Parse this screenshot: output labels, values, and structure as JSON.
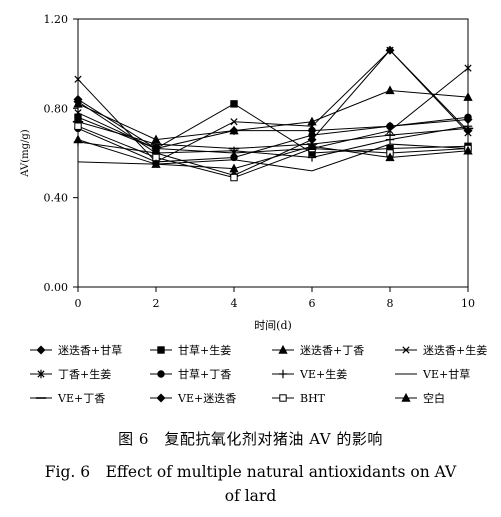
{
  "chart_data": {
    "type": "line",
    "title": "",
    "xlabel": "时间(d)",
    "ylabel": "AV(mg/g)",
    "x": [
      0,
      2,
      4,
      6,
      8,
      10
    ],
    "x_ticks": [
      "0",
      "2",
      "4",
      "6",
      "8",
      "10"
    ],
    "y_ticks": [
      "0.00",
      "0.40",
      "0.80",
      "1.20"
    ],
    "xlim": [
      0,
      10
    ],
    "ylim": [
      0,
      1.2
    ],
    "grid": false,
    "legend_position": "bottom",
    "series": [
      {
        "name": "迷迭香+甘草",
        "marker": "diamond",
        "values": [
          0.84,
          0.62,
          0.7,
          0.7,
          0.72,
          0.75
        ]
      },
      {
        "name": "甘草+生姜",
        "marker": "square",
        "values": [
          0.76,
          0.62,
          0.82,
          0.6,
          0.62,
          0.63
        ]
      },
      {
        "name": "迷迭香+丁香",
        "marker": "triangle",
        "values": [
          0.82,
          0.66,
          0.7,
          0.74,
          0.88,
          0.85
        ]
      },
      {
        "name": "迷迭香+生姜",
        "marker": "cross",
        "values": [
          0.93,
          0.56,
          0.74,
          0.72,
          1.06,
          0.69
        ]
      },
      {
        "name": "丁香+生姜",
        "marker": "star",
        "values": [
          0.78,
          0.62,
          0.6,
          0.62,
          0.7,
          0.98
        ]
      },
      {
        "name": "甘草+丁香",
        "marker": "circle",
        "values": [
          0.71,
          0.56,
          0.58,
          0.68,
          0.72,
          0.76
        ]
      },
      {
        "name": "VE+生姜",
        "marker": "plus",
        "values": [
          0.65,
          0.6,
          0.61,
          0.58,
          0.66,
          0.72
        ]
      },
      {
        "name": "VE+甘草",
        "marker": "none",
        "values": [
          0.56,
          0.55,
          0.57,
          0.52,
          0.64,
          0.62
        ]
      },
      {
        "name": "VE+丁香",
        "marker": "dash",
        "values": [
          0.74,
          0.64,
          0.62,
          0.64,
          0.68,
          0.71
        ]
      },
      {
        "name": "VE+迷迭香",
        "marker": "diamond",
        "values": [
          0.83,
          0.6,
          0.5,
          0.66,
          1.06,
          0.7
        ]
      },
      {
        "name": "BHT",
        "marker": "square-open",
        "values": [
          0.72,
          0.58,
          0.49,
          0.62,
          0.6,
          0.62
        ]
      },
      {
        "name": "空白",
        "marker": "triangle",
        "values": [
          0.66,
          0.55,
          0.53,
          0.63,
          0.58,
          0.61
        ]
      }
    ]
  },
  "caption": {
    "cn": "图 6　复配抗氧化剂对猪油 AV 的影响",
    "en_line1": "Fig. 6　Effect of multiple natural antioxidants on AV",
    "en_line2": "of lard"
  }
}
